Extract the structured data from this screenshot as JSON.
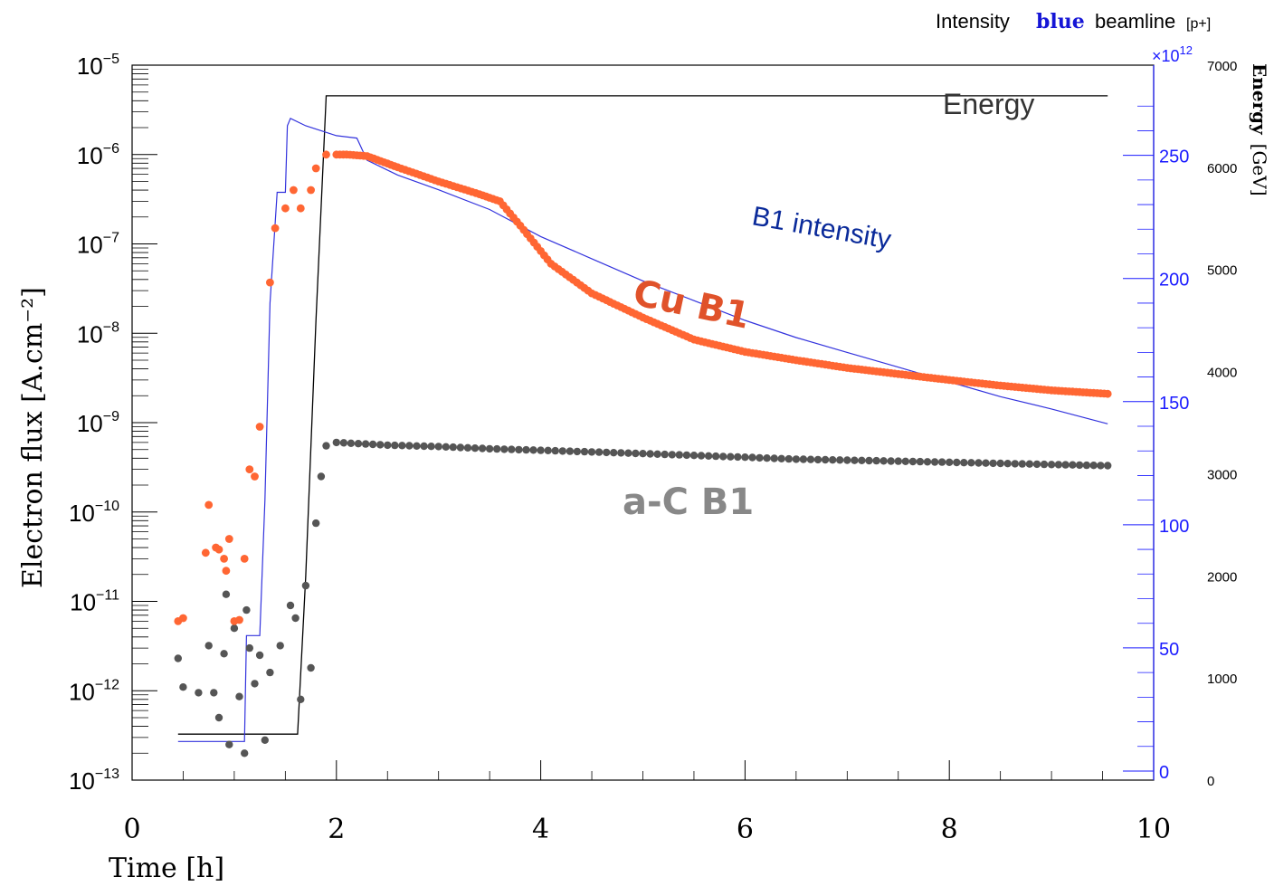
{
  "header": {
    "prefix": "Intensity",
    "highlight": "blue",
    "suffix": "beamline",
    "unit": "[p+]"
  },
  "chart_data": {
    "type": "scatter",
    "xlabel": "Time [h]",
    "ylabel": "Electron flux [A.cm⁻²]",
    "xlim": [
      0,
      10
    ],
    "xticks": [
      "0",
      "2",
      "4",
      "6",
      "8",
      "10"
    ],
    "y_scale": "log",
    "ylim": [
      1e-13,
      1e-05
    ],
    "yticks": [
      {
        "base": "10",
        "exp": "−5"
      },
      {
        "base": "10",
        "exp": "−6"
      },
      {
        "base": "10",
        "exp": "−7"
      },
      {
        "base": "10",
        "exp": "−8"
      },
      {
        "base": "10",
        "exp": "−9"
      },
      {
        "base": "10",
        "exp": "−10"
      },
      {
        "base": "10",
        "exp": "−11"
      },
      {
        "base": "10",
        "exp": "−12"
      },
      {
        "base": "10",
        "exp": "−13"
      }
    ],
    "y2": {
      "multiplier": "×10",
      "multiplier_exp": "12",
      "ticks": [
        "0",
        "50",
        "100",
        "150",
        "200",
        "250"
      ],
      "ylim": [
        0,
        280
      ],
      "color": "#1a1aff"
    },
    "y3": {
      "label": "Energy",
      "unit": "[GeV]",
      "ticks": [
        "0",
        "1000",
        "2000",
        "3000",
        "4000",
        "5000",
        "6000",
        "7000"
      ],
      "ylim": [
        0,
        7000
      ]
    },
    "annotations": {
      "energy": "Energy",
      "b1_intensity": "B1 intensity",
      "cu_b1": "Cu B1",
      "ac_b1": "a-C B1"
    },
    "colors": {
      "cu": "#ff6633",
      "ac": "#555555",
      "intensity": "#3333dd",
      "energy": "#000000",
      "label_intensity": "#0a2a9a",
      "label_cu": "#e0522a",
      "label_ac": "#888888"
    },
    "energy_series": [
      [
        0.45,
        450
      ],
      [
        1.62,
        450
      ],
      [
        1.7,
        2000
      ],
      [
        1.8,
        4500
      ],
      [
        1.9,
        6700
      ],
      [
        9.55,
        6700
      ]
    ],
    "intensity_series": [
      [
        0.45,
        12
      ],
      [
        1.1,
        12
      ],
      [
        1.12,
        55
      ],
      [
        1.25,
        55
      ],
      [
        1.3,
        110
      ],
      [
        1.35,
        190
      ],
      [
        1.42,
        235
      ],
      [
        1.5,
        235
      ],
      [
        1.52,
        262
      ],
      [
        1.55,
        265
      ],
      [
        1.7,
        262
      ],
      [
        2.0,
        258
      ],
      [
        2.2,
        257
      ],
      [
        2.3,
        248
      ],
      [
        2.6,
        242
      ],
      [
        3,
        236
      ],
      [
        3.5,
        228
      ],
      [
        4,
        217
      ],
      [
        4.5,
        208
      ],
      [
        5,
        199
      ],
      [
        5.5,
        191
      ],
      [
        6,
        183
      ],
      [
        6.5,
        176
      ],
      [
        7,
        170
      ],
      [
        7.5,
        164
      ],
      [
        8,
        158
      ],
      [
        8.5,
        152
      ],
      [
        9,
        147
      ],
      [
        9.55,
        141
      ]
    ],
    "cu_series": [
      [
        0.45,
        6e-12
      ],
      [
        0.5,
        6.5e-12
      ],
      [
        0.72,
        3.5e-11
      ],
      [
        0.75,
        1.2e-10
      ],
      [
        0.82,
        4e-11
      ],
      [
        0.85,
        3.8e-11
      ],
      [
        0.9,
        3e-11
      ],
      [
        0.92,
        2.2e-11
      ],
      [
        0.95,
        5e-11
      ],
      [
        1.0,
        6e-12
      ],
      [
        1.05,
        6.2e-12
      ],
      [
        1.1,
        3e-11
      ],
      [
        1.15,
        3e-10
      ],
      [
        1.2,
        2.5e-10
      ],
      [
        1.25,
        9e-10
      ],
      [
        1.35,
        3.7e-08
      ],
      [
        1.4,
        1.5e-07
      ],
      [
        1.5,
        2.5e-07
      ],
      [
        1.58,
        4e-07
      ],
      [
        1.65,
        2.5e-07
      ],
      [
        1.75,
        4e-07
      ],
      [
        1.8,
        7e-07
      ],
      [
        1.9,
        1e-06
      ],
      [
        2.0,
        1e-06
      ],
      [
        2.1,
        1e-06
      ],
      [
        2.3,
        9.6e-07
      ],
      [
        2.6,
        7.2e-07
      ],
      [
        3.0,
        5e-07
      ],
      [
        3.4,
        3.6e-07
      ],
      [
        3.6,
        3e-07
      ],
      [
        3.8,
        1.6e-07
      ],
      [
        4.1,
        6e-08
      ],
      [
        4.5,
        2.8e-08
      ],
      [
        5.0,
        1.5e-08
      ],
      [
        5.5,
        8.5e-09
      ],
      [
        6.0,
        6.2e-09
      ],
      [
        6.5,
        5e-09
      ],
      [
        7.0,
        4.1e-09
      ],
      [
        7.5,
        3.5e-09
      ],
      [
        8.0,
        3e-09
      ],
      [
        8.5,
        2.6e-09
      ],
      [
        9.0,
        2.3e-09
      ],
      [
        9.55,
        2.1e-09
      ]
    ],
    "ac_series": [
      [
        0.45,
        2.3e-12
      ],
      [
        0.5,
        1.1e-12
      ],
      [
        0.65,
        9.5e-13
      ],
      [
        0.8,
        9.5e-13
      ],
      [
        0.75,
        3.2e-12
      ],
      [
        0.85,
        5e-13
      ],
      [
        0.9,
        2.6e-12
      ],
      [
        0.92,
        1.2e-11
      ],
      [
        0.95,
        2.5e-13
      ],
      [
        1.0,
        5e-12
      ],
      [
        1.05,
        8.6e-13
      ],
      [
        1.1,
        2e-13
      ],
      [
        1.12,
        8e-12
      ],
      [
        1.15,
        3e-12
      ],
      [
        1.2,
        1.2e-12
      ],
      [
        1.25,
        2.5e-12
      ],
      [
        1.3,
        2.8e-13
      ],
      [
        1.35,
        1.6e-12
      ],
      [
        1.45,
        3.2e-12
      ],
      [
        1.55,
        9e-12
      ],
      [
        1.6,
        6.5e-12
      ],
      [
        1.65,
        8e-13
      ],
      [
        1.7,
        1.5e-11
      ],
      [
        1.75,
        1.8e-12
      ],
      [
        1.8,
        7.5e-11
      ],
      [
        1.85,
        2.5e-10
      ],
      [
        1.9,
        5.5e-10
      ],
      [
        2.0,
        6e-10
      ],
      [
        2.5,
        5.6e-10
      ],
      [
        3.0,
        5.4e-10
      ],
      [
        3.5,
        5.1e-10
      ],
      [
        4.0,
        4.9e-10
      ],
      [
        4.5,
        4.7e-10
      ],
      [
        5.0,
        4.5e-10
      ],
      [
        5.5,
        4.3e-10
      ],
      [
        6.0,
        4.1e-10
      ],
      [
        6.5,
        3.9e-10
      ],
      [
        7.0,
        3.8e-10
      ],
      [
        7.5,
        3.7e-10
      ],
      [
        8.0,
        3.6e-10
      ],
      [
        8.5,
        3.5e-10
      ],
      [
        9.0,
        3.4e-10
      ],
      [
        9.55,
        3.3e-10
      ]
    ]
  }
}
